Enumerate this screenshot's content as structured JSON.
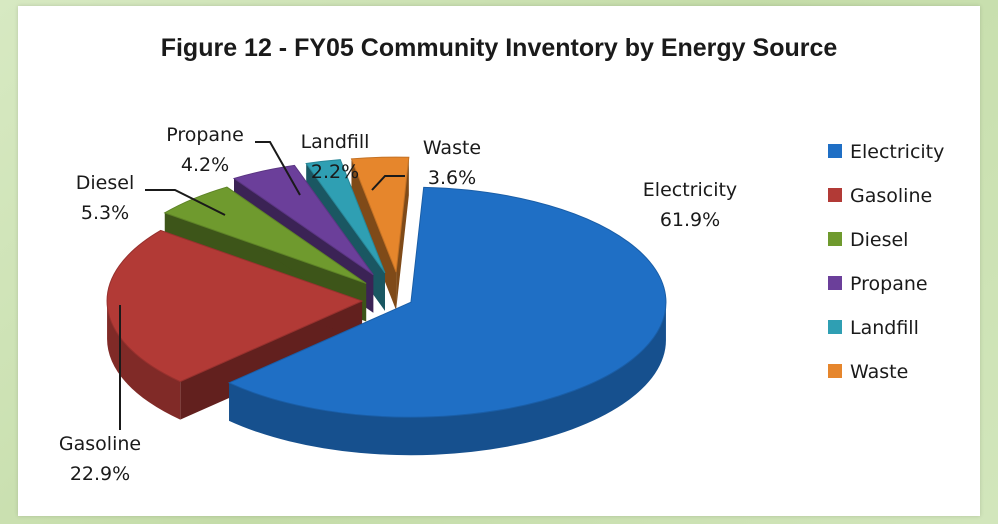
{
  "chart_data": {
    "type": "pie",
    "title": "Figure 12 - FY05 Community Inventory by Energy Source",
    "categories": [
      "Electricity",
      "Gasoline",
      "Diesel",
      "Propane",
      "Landfill",
      "Waste"
    ],
    "values": [
      61.9,
      22.9,
      5.3,
      4.2,
      2.2,
      3.6
    ],
    "data_labels": [
      "61.9%",
      "22.9%",
      "5.3%",
      "4.2%",
      "2.2%",
      "3.6%"
    ],
    "colors": [
      "#1f6fc5",
      "#b23a36",
      "#6f9a2e",
      "#6b3f9a",
      "#2f9fb3",
      "#e6862c"
    ],
    "legend": {
      "placement": "right",
      "entries": [
        "Electricity",
        "Gasoline",
        "Diesel",
        "Propane",
        "Landfill",
        "Waste"
      ]
    },
    "style": "3d-exploded"
  }
}
